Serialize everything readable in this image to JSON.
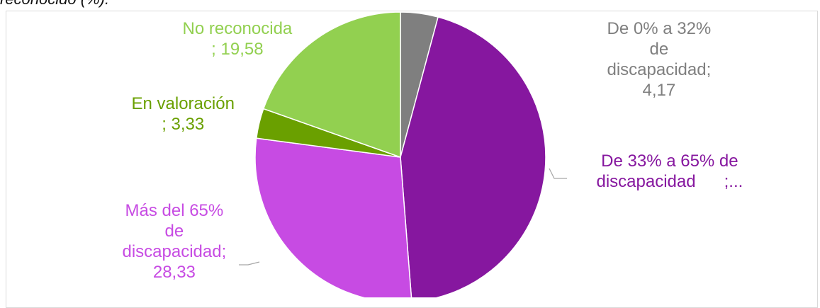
{
  "caption": "reconocido (%).",
  "chart_data": {
    "type": "pie",
    "legend": "none",
    "slices": [
      {
        "name": "De 0% a 32% de discapacidad",
        "value": 4.17,
        "color": "#7f7f7f",
        "label_lines": [
          "De 0% a 32%",
          "de",
          "discapacidad;",
          "4,17"
        ]
      },
      {
        "name": "De 33% a 65% de discapacidad",
        "value": 44.59,
        "color": "#86179f",
        "label_lines": [
          "De 33% a 65% de",
          "discapacidad      ;..."
        ]
      },
      {
        "name": "Más del 65% de discapacidad",
        "value": 28.33,
        "color": "#c74be3",
        "label_lines": [
          "Más del 65%",
          "de",
          "discapacidad;",
          "28,33"
        ]
      },
      {
        "name": "En valoración",
        "value": 3.33,
        "color": "#6aa000",
        "label_lines": [
          "En valoración",
          "; 3,33"
        ]
      },
      {
        "name": "No reconocida",
        "value": 19.58,
        "color": "#92d050",
        "label_lines": [
          "No reconocida",
          "; 19,58"
        ]
      }
    ]
  }
}
